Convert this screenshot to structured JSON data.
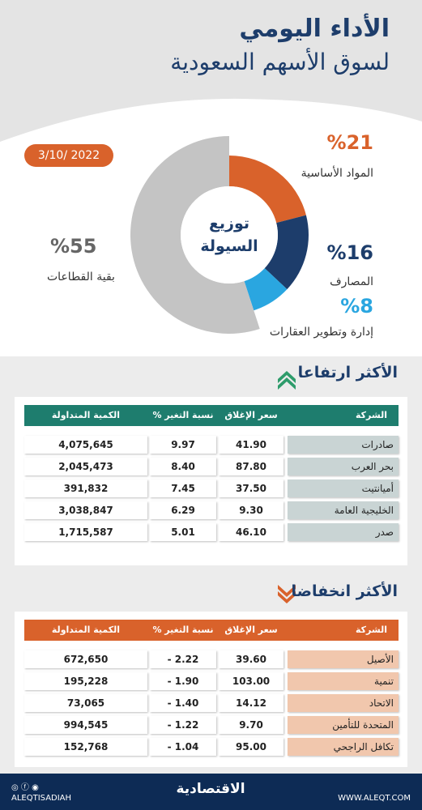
{
  "header": {
    "title": "الأداء اليومي",
    "subtitle": "لسوق الأسهم السعودية",
    "date": "3/10/ 2022"
  },
  "chart_data": {
    "type": "pie",
    "title": "توزيع السيولة",
    "categories": [
      "المواد الأساسية",
      "المصارف",
      "إدارة وتطوير العقارات",
      "بقية القطاعات"
    ],
    "values": [
      21,
      16,
      8,
      55
    ],
    "value_labels": [
      "%21",
      "%16",
      "%8",
      "%55"
    ],
    "colors": [
      "#d9622b",
      "#1d3d6b",
      "#2aa6e0",
      "#c4c4c4"
    ]
  },
  "gainers": {
    "title": "الأكثر ارتفاعا",
    "columns": [
      "الشركة",
      "سعر الإغلاق",
      "نسبة التغير %",
      "الكمية المتداولة"
    ],
    "rows": [
      [
        "صادرات",
        "41.90",
        "9.97",
        "4,075,645"
      ],
      [
        "بحر العرب",
        "87.80",
        "8.40",
        "2,045,473"
      ],
      [
        "أميانتيت",
        "37.50",
        "7.45",
        "391,832"
      ],
      [
        "الخليجية العامة",
        "9.30",
        "6.29",
        "3,038,847"
      ],
      [
        "صدر",
        "46.10",
        "5.01",
        "1,715,587"
      ]
    ]
  },
  "losers": {
    "title": "الأكثر انخفاضا",
    "columns": [
      "الشركة",
      "سعر الإغلاق",
      "نسبة التغير %",
      "الكمية المتداولة"
    ],
    "rows": [
      [
        "الأصيل",
        "39.60",
        "- 2.22",
        "672,650"
      ],
      [
        "تنمية",
        "103.00",
        "- 1.90",
        "195,228"
      ],
      [
        "الاتحاد",
        "14.12",
        "- 1.40",
        "73,065"
      ],
      [
        "المتحدة للتأمين",
        "9.70",
        "- 1.22",
        "994,545"
      ],
      [
        "تكافل الراجحي",
        "95.00",
        "- 1.04",
        "152,768"
      ]
    ]
  },
  "footer": {
    "social": "ALEQTISADIAH",
    "brand": "الاقتصادية",
    "website": "WWW.ALEQT.COM"
  }
}
